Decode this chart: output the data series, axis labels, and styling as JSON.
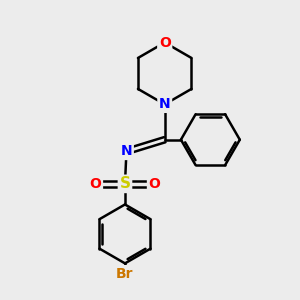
{
  "bg_color": "#ececec",
  "atom_colors": {
    "O": "#ff0000",
    "N": "#0000ff",
    "S": "#cccc00",
    "Br": "#cc7700",
    "C": "#000000"
  },
  "bond_color": "#000000",
  "bond_width": 1.8,
  "fig_size": [
    3.0,
    3.0
  ],
  "dpi": 100
}
